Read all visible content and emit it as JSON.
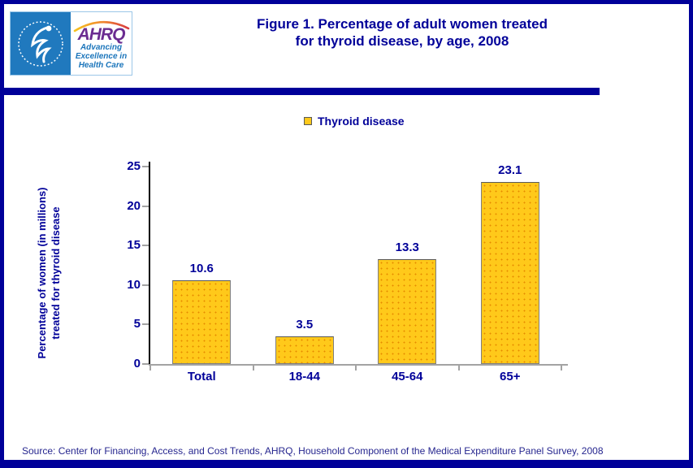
{
  "header": {
    "logo": {
      "hhs_seal": "hhs-eagle-seal",
      "ahrq_acronym": "AHRQ",
      "tagline_lines": [
        "Advancing",
        "Excellence in",
        "Health Care"
      ]
    },
    "title_line1": "Figure 1. Percentage of adult women treated",
    "title_line2": "for thyroid disease, by age, 2008"
  },
  "legend": {
    "label": "Thyroid disease",
    "swatch_color": "#FFC91A"
  },
  "chart_data": {
    "type": "bar",
    "title": "Figure 1. Percentage of adult women treated for thyroid disease, by age, 2008",
    "series_name": "Thyroid disease",
    "categories": [
      "Total",
      "18-44",
      "45-64",
      "65+"
    ],
    "values": [
      10.6,
      3.5,
      13.3,
      23.1
    ],
    "value_labels": [
      "10.6",
      "3.5",
      "13.3",
      "23.1"
    ],
    "ylabel_line1": "Percentage of women (in millions)",
    "ylabel_line2": "treated for thyroid disease",
    "ylim": [
      0,
      25
    ],
    "yticks": [
      0,
      5,
      10,
      15,
      20,
      25
    ],
    "yticks_display": [
      "25",
      "20",
      "15",
      "10",
      "5",
      "0"
    ],
    "grid": false,
    "legend_position": "top",
    "bar_color": "#FFC91A",
    "bar_dot_color": "#E68A00",
    "bar_border_color": "#7F7F7F",
    "xlabel": ""
  },
  "footer": {
    "source": "Source: Center for Financing, Access, and Cost Trends, AHRQ, Household Component of the Medical Expenditure Panel Survey,  2008"
  },
  "colors": {
    "navy": "#000099",
    "hhs_blue": "#2079BE",
    "ahrq_purple": "#6B2C91",
    "tagline_blue": "#1B75BB",
    "axis_gray": "#A3A3A3"
  }
}
